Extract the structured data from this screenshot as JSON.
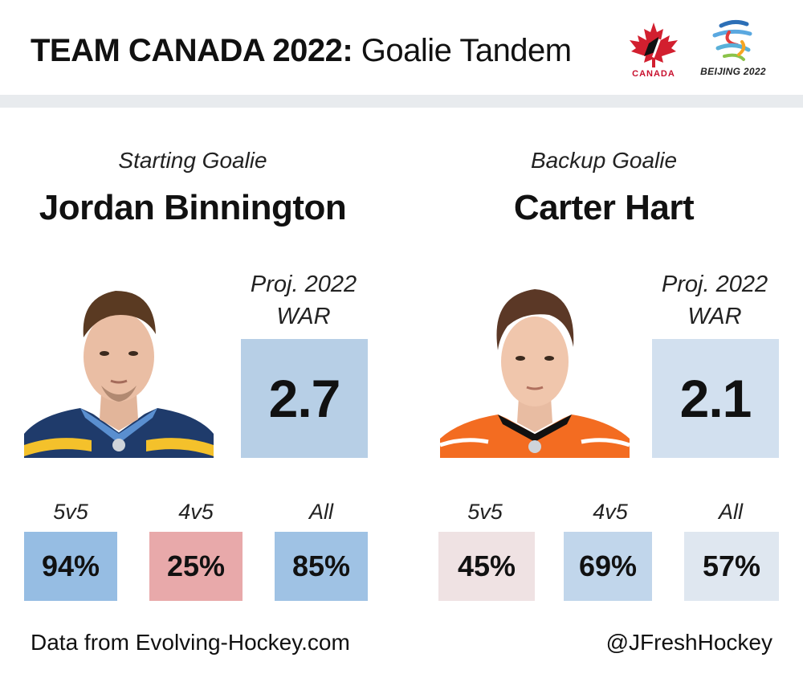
{
  "header": {
    "title_bold": "TEAM CANADA 2022:",
    "title_light": " Goalie Tandem",
    "logos": {
      "canada_text": "CANADA",
      "beijing_text": "BEIJING 2022"
    }
  },
  "goalies": [
    {
      "role": "Starting Goalie",
      "name": "Jordan Binnington",
      "war_label_line1": "Proj. 2022",
      "war_label_line2": "WAR",
      "war_value": "2.7",
      "war_color": "#b7cfe6",
      "jersey": "blues",
      "stats": [
        {
          "label": "5v5",
          "value": "94%",
          "color": "#96bde3"
        },
        {
          "label": "4v5",
          "value": "25%",
          "color": "#e8a9aa"
        },
        {
          "label": "All",
          "value": "85%",
          "color": "#9fc2e4"
        }
      ]
    },
    {
      "role": "Backup Goalie",
      "name": "Carter Hart",
      "war_label_line1": "Proj. 2022",
      "war_label_line2": "WAR",
      "war_value": "2.1",
      "war_color": "#d2e0ef",
      "jersey": "flyers",
      "stats": [
        {
          "label": "5v5",
          "value": "45%",
          "color": "#efe2e3"
        },
        {
          "label": "4v5",
          "value": "69%",
          "color": "#c1d6eb"
        },
        {
          "label": "All",
          "value": "57%",
          "color": "#dfe7f0"
        }
      ]
    }
  ],
  "footer": {
    "source": "Data from Evolving-Hockey.com",
    "handle": "@JFreshHockey"
  }
}
